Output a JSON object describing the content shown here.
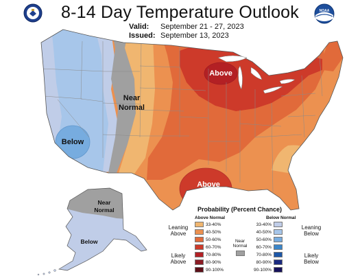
{
  "header": {
    "title": "8-14 Day Temperature Outlook",
    "valid_label": "Valid:",
    "valid_value": "September 21 - 27, 2023",
    "issued_label": "Issued:",
    "issued_value": "September 13, 2023"
  },
  "logos": {
    "left_icon": "doc-seal-icon",
    "right_icon": "noaa-logo-icon",
    "right_text": "NOAA"
  },
  "map": {
    "labels": {
      "above_north": "Above",
      "near_normal_1": "Near",
      "near_normal_2": "Normal",
      "below_west": "Below",
      "above_south": "Above",
      "alaska_near_1": "Near",
      "alaska_near_2": "Normal",
      "alaska_below": "Below"
    },
    "colors": {
      "above_33_40": "#f0b670",
      "above_40_50": "#ec9150",
      "above_50_60": "#e16a3a",
      "above_60_70": "#cd3a2a",
      "above_70_80": "#b32024",
      "below_33_40": "#c0cde8",
      "below_40_50": "#a7c6ea",
      "below_50_60": "#77acdf",
      "near_normal": "#a0a0a0"
    }
  },
  "legend": {
    "title": "Probability (Percent Chance)",
    "above_header": "Above Normal",
    "below_header": "Below Normal",
    "leaning_above": [
      "Leaning",
      "Above"
    ],
    "likely_above": [
      "Likely",
      "Above"
    ],
    "leaning_below": [
      "Leaning",
      "Below"
    ],
    "likely_below": [
      "Likely",
      "Below"
    ],
    "near_normal": [
      "Near",
      "Normal"
    ],
    "above_items": [
      {
        "label": "33-40%",
        "color": "#f0b670"
      },
      {
        "label": "40-50%",
        "color": "#ec9150"
      },
      {
        "label": "50-60%",
        "color": "#e16a3a"
      },
      {
        "label": "60-70%",
        "color": "#cd3a2a"
      },
      {
        "label": "70-80%",
        "color": "#b32024"
      },
      {
        "label": "80-90%",
        "color": "#8c1c24"
      },
      {
        "label": "90-100%",
        "color": "#5c1018"
      }
    ],
    "below_items": [
      {
        "label": "33-40%",
        "color": "#c0cde8"
      },
      {
        "label": "40-50%",
        "color": "#a7c6ea"
      },
      {
        "label": "50-60%",
        "color": "#77acdf"
      },
      {
        "label": "60-70%",
        "color": "#3b86c9"
      },
      {
        "label": "70-80%",
        "color": "#1d57a8"
      },
      {
        "label": "80-90%",
        "color": "#1a2a80"
      },
      {
        "label": "90-100%",
        "color": "#16125a"
      }
    ],
    "near_color": "#a0a0a0"
  }
}
